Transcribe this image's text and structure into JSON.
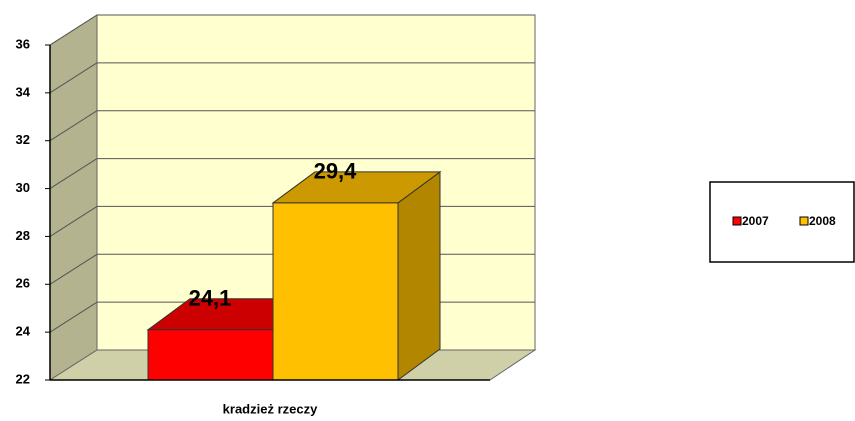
{
  "chart_data": {
    "type": "bar3d",
    "categories": [
      "kradzież rzeczy"
    ],
    "series": [
      {
        "name": "2007",
        "color": "#ff0000",
        "values": [
          24.1
        ],
        "value_labels": [
          "24,1"
        ]
      },
      {
        "name": "2008",
        "color": "#ffc000",
        "values": [
          29.4
        ],
        "value_labels": [
          "29,4"
        ]
      }
    ],
    "ylim": [
      22,
      36
    ],
    "yticks": [
      22,
      24,
      26,
      28,
      30,
      32,
      34,
      36
    ],
    "grid": true,
    "legend": "right"
  }
}
